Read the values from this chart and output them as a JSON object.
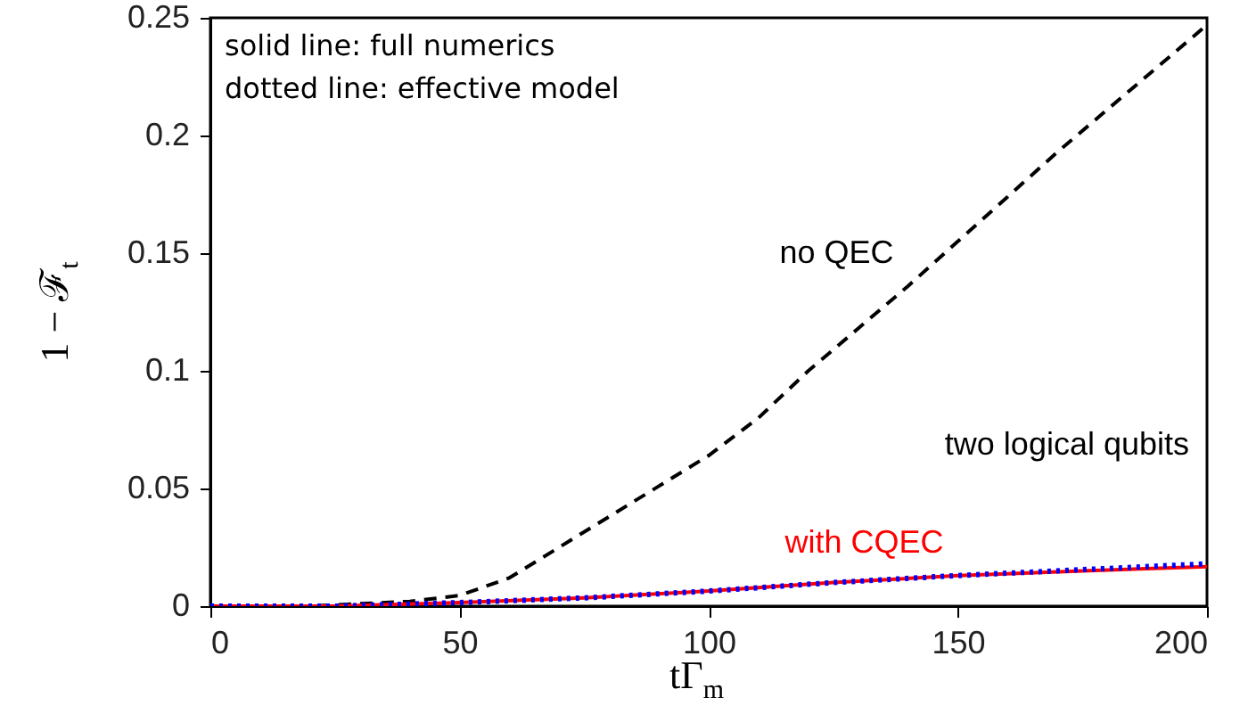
{
  "chart_data": {
    "type": "line",
    "xlabel": "tΓ$_{m}$",
    "ylabel": "1 − ℱ$_{t}$",
    "xlim": [
      0,
      200
    ],
    "xticks": [
      0,
      50,
      100,
      150,
      200
    ],
    "ylim": [
      0,
      0.25
    ],
    "yticks": [
      0,
      0.05,
      0.1,
      0.15,
      0.2,
      0.25
    ],
    "grid": false,
    "marker": "none",
    "series": [
      {
        "name": "no QEC",
        "color": "#000000",
        "line_style": "dashed",
        "x": [
          0,
          10,
          20,
          30,
          40,
          50,
          60,
          70,
          80,
          90,
          100,
          110,
          120,
          130,
          140,
          150,
          160,
          170,
          180,
          190,
          200
        ],
        "values": [
          0,
          0,
          0,
          0.001,
          0.002,
          0.0045,
          0.012,
          0.025,
          0.038,
          0.051,
          0.064,
          0.08,
          0.1,
          0.118,
          0.136,
          0.155,
          0.174,
          0.193,
          0.211,
          0.229,
          0.247
        ]
      },
      {
        "name": "with CQEC",
        "color": "#ff0000",
        "line_style": "solid",
        "x": [
          0,
          25,
          50,
          75,
          100,
          125,
          150,
          175,
          200
        ],
        "values": [
          0,
          0,
          0.0015,
          0.0035,
          0.0064,
          0.01,
          0.013,
          0.015,
          0.0168
        ]
      },
      {
        "color": "#0000ff",
        "line_style": "dotted",
        "x": [
          0,
          25,
          50,
          75,
          100,
          125,
          150,
          175,
          200
        ],
        "values": [
          0,
          0,
          0.0015,
          0.0035,
          0.0064,
          0.01,
          0.013,
          0.0155,
          0.018
        ]
      }
    ],
    "annotations": [
      "solid line: full numerics",
      "dotted line: effective model",
      "two logical qubits"
    ]
  }
}
